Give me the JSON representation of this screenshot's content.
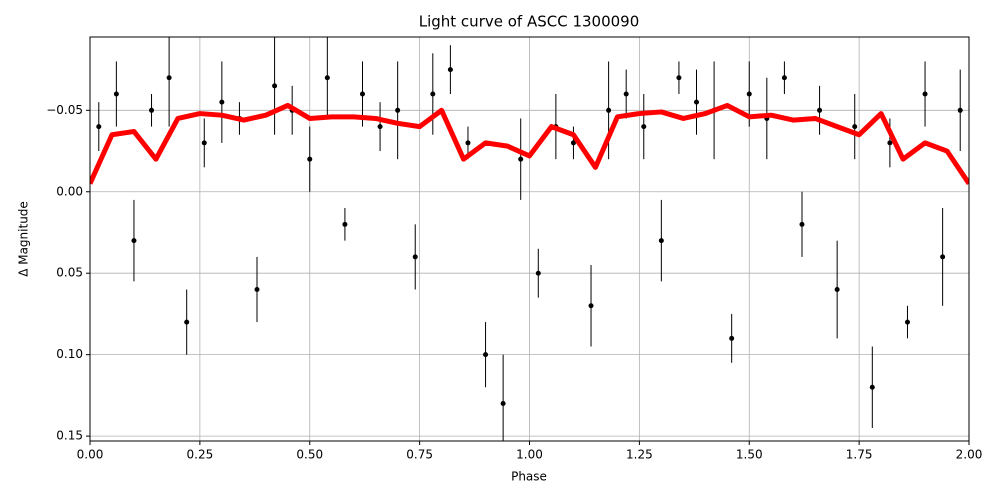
{
  "chart_data": {
    "type": "errorbar-scatter",
    "title": "Light curve of ASCC 1300090",
    "x_label": "Phase",
    "y_label": "Δ Magnitude",
    "xlim": [
      0,
      2
    ],
    "ylim": [
      0.153,
      -0.095
    ],
    "xticks": [
      {
        "value": 0,
        "label": "0.00"
      },
      {
        "value": 0.25,
        "label": "0.25"
      },
      {
        "value": 0.5,
        "label": "0.50"
      },
      {
        "value": 0.75,
        "label": "0.75"
      },
      {
        "value": 1,
        "label": "1.00"
      },
      {
        "value": 1.25,
        "label": "1.25"
      },
      {
        "value": 1.5,
        "label": "1.50"
      },
      {
        "value": 1.75,
        "label": "1.75"
      },
      {
        "value": 2,
        "label": "2.00"
      }
    ],
    "yticks": [
      {
        "value": -0.05,
        "label": "−0.05"
      },
      {
        "value": 0,
        "label": "0.00"
      },
      {
        "value": 0.05,
        "label": "0.05"
      },
      {
        "value": 0.1,
        "label": "0.10"
      },
      {
        "value": 0.15,
        "label": "0.15"
      }
    ],
    "grid": true,
    "points": {
      "color": "#000000",
      "x": [
        0.02,
        0.06,
        0.1,
        0.14,
        0.18,
        0.22,
        0.26,
        0.3,
        0.34,
        0.38,
        0.42,
        0.46,
        0.5,
        0.54,
        0.58,
        0.62,
        0.66,
        0.7,
        0.74,
        0.78,
        0.82,
        0.86,
        0.9,
        0.94,
        0.98,
        1.02,
        1.06,
        1.1,
        1.14,
        1.18,
        1.22,
        1.26,
        1.3,
        1.34,
        1.38,
        1.42,
        1.46,
        1.5,
        1.54,
        1.58,
        1.62,
        1.66,
        1.7,
        1.74,
        1.78,
        1.82,
        1.86,
        1.9,
        1.94,
        1.98
      ],
      "values": [
        -0.04,
        -0.06,
        0.03,
        -0.05,
        -0.07,
        0.08,
        -0.03,
        -0.055,
        -0.045,
        0.06,
        -0.065,
        -0.05,
        -0.02,
        -0.07,
        0.02,
        -0.06,
        -0.04,
        -0.05,
        0.04,
        -0.06,
        -0.075,
        -0.03,
        0.1,
        0.13,
        -0.02,
        0.05,
        -0.04,
        -0.03,
        0.07,
        -0.05,
        -0.06,
        -0.04,
        0.03,
        -0.07,
        -0.055,
        -0.05,
        0.09,
        -0.06,
        -0.045,
        -0.07,
        0.02,
        -0.05,
        0.06,
        -0.04,
        0.12,
        -0.03,
        0.08,
        -0.06,
        0.04,
        -0.05
      ],
      "errors": [
        0.015,
        0.02,
        0.025,
        0.01,
        0.03,
        0.02,
        0.015,
        0.025,
        0.01,
        0.02,
        0.03,
        0.015,
        0.02,
        0.025,
        0.01,
        0.02,
        0.015,
        0.03,
        0.02,
        0.025,
        0.015,
        0.01,
        0.02,
        0.03,
        0.025,
        0.015,
        0.02,
        0.01,
        0.025,
        0.03,
        0.015,
        0.02,
        0.025,
        0.01,
        0.02,
        0.03,
        0.015,
        0.02,
        0.025,
        0.01,
        0.02,
        0.015,
        0.03,
        0.02,
        0.025,
        0.015,
        0.01,
        0.02,
        0.03,
        0.025
      ]
    },
    "model": {
      "color": "#ff0000",
      "x": [
        0,
        0.05,
        0.1,
        0.15,
        0.2,
        0.25,
        0.3,
        0.35,
        0.4,
        0.45,
        0.5,
        0.55,
        0.6,
        0.65,
        0.7,
        0.75,
        0.8,
        0.85,
        0.9,
        0.95,
        1,
        1.05,
        1.1,
        1.15,
        1.2,
        1.25,
        1.3,
        1.35,
        1.4,
        1.45,
        1.5,
        1.55,
        1.6,
        1.65,
        1.7,
        1.75,
        1.8,
        1.85,
        1.9,
        1.95,
        2
      ],
      "values": [
        -0.005,
        -0.035,
        -0.037,
        -0.02,
        -0.045,
        -0.048,
        -0.047,
        -0.044,
        -0.047,
        -0.053,
        -0.045,
        -0.046,
        -0.046,
        -0.045,
        -0.042,
        -0.04,
        -0.05,
        -0.02,
        -0.03,
        -0.028,
        -0.022,
        -0.04,
        -0.035,
        -0.015,
        -0.046,
        -0.048,
        -0.049,
        -0.045,
        -0.048,
        -0.053,
        -0.046,
        -0.047,
        -0.044,
        -0.045,
        -0.04,
        -0.035,
        -0.048,
        -0.02,
        -0.03,
        -0.025,
        -0.005
      ]
    }
  }
}
